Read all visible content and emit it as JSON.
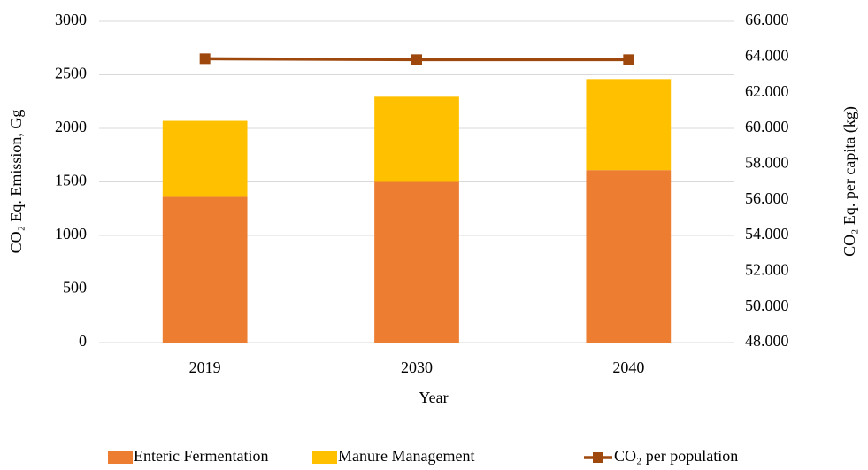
{
  "chart_data": {
    "type": "bar",
    "stacked": true,
    "categories": [
      "2019",
      "2030",
      "2040"
    ],
    "series": [
      {
        "name": "Enteric Fermentation",
        "color": "#ed7d31",
        "values": [
          1360,
          1500,
          1610
        ]
      },
      {
        "name": "Manure Management",
        "color": "#ffc000",
        "values": [
          710,
          795,
          850
        ]
      },
      {
        "name": "CO₂ per population",
        "color": "#9e480e",
        "type": "line",
        "axis": "y2",
        "values": [
          63.9,
          63.85,
          63.85
        ]
      }
    ],
    "x_label": "Year",
    "y_label": "CO₂ Eq. Emission, Gg",
    "y2_label": "CO₂ Eq. per capita (kg)",
    "ylim": [
      0,
      3000
    ],
    "yticks": [
      0,
      500,
      1000,
      1500,
      2000,
      2500,
      3000
    ],
    "y2lim": [
      48,
      66
    ],
    "y2ticks": [
      {
        "value": 48,
        "label": "48.000"
      },
      {
        "value": 50,
        "label": "50.000"
      },
      {
        "value": 52,
        "label": "52.000"
      },
      {
        "value": 54,
        "label": "54.000"
      },
      {
        "value": 56,
        "label": "56.000"
      },
      {
        "value": 58,
        "label": "58.000"
      },
      {
        "value": 60,
        "label": "60.000"
      },
      {
        "value": 62,
        "label": "62.000"
      },
      {
        "value": 64,
        "label": "64.000"
      },
      {
        "value": 66,
        "label": "66.000"
      }
    ],
    "grid": true,
    "legend": "bottom"
  }
}
